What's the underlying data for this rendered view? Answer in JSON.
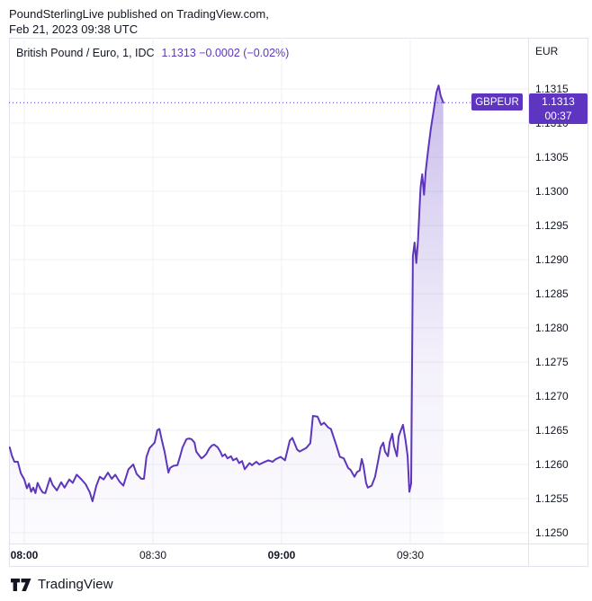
{
  "header": {
    "line1": "PoundSterlingLive published on TradingView.com,",
    "line2": "Feb 21, 2023 09:38 UTC"
  },
  "chart": {
    "title": "British Pound / Euro, 1, IDC",
    "quote_text": "1.1313  −0.0002 (−0.02%)",
    "axis_currency": "EUR",
    "symbol_badge": "GBPEUR",
    "price_badge_price": "1.1313",
    "price_badge_countdown": "00:37",
    "colors": {
      "accent": "#5d35c1",
      "line": "#5e36bb",
      "text": "#131722",
      "grid": "#eef1f6",
      "border": "#e0e3eb",
      "background": "#ffffff"
    }
  },
  "chart_data": {
    "type": "area",
    "title": "British Pound / Euro, 1, IDC",
    "symbol": "GBPEUR",
    "interval": "1 minute",
    "date": "Feb 21, 2023",
    "x_unit": "minutes since 08:00 UTC",
    "ylim": [
      1.1248,
      1.1322
    ],
    "xlim_minutes": [
      -3.6,
      101
    ],
    "grid": true,
    "last_price": 1.1313,
    "change": -0.0002,
    "change_pct": "-0.02%",
    "price_ticks": [
      "1.1315",
      "1.1310",
      "1.1305",
      "1.1300",
      "1.1295",
      "1.1290",
      "1.1285",
      "1.1280",
      "1.1275",
      "1.1270",
      "1.1265",
      "1.1260",
      "1.1255",
      "1.1250"
    ],
    "time_ticks": [
      {
        "label": "08:00",
        "t": 0,
        "bold": true
      },
      {
        "label": "08:30",
        "t": 30,
        "bold": false
      },
      {
        "label": "09:00",
        "t": 60,
        "bold": true
      },
      {
        "label": "09:30",
        "t": 90,
        "bold": false
      }
    ],
    "series": [
      {
        "name": "GBPEUR close",
        "points": [
          [
            -3.4,
            1.12625
          ],
          [
            -2.9,
            1.12613
          ],
          [
            -2.3,
            1.12604
          ],
          [
            -1.5,
            1.12604
          ],
          [
            -0.8,
            1.12587
          ],
          [
            0,
            1.12578
          ],
          [
            0.6,
            1.12565
          ],
          [
            1.1,
            1.12572
          ],
          [
            1.6,
            1.1256
          ],
          [
            2.1,
            1.12566
          ],
          [
            2.6,
            1.12558
          ],
          [
            3.1,
            1.12573
          ],
          [
            3.7,
            1.12565
          ],
          [
            4.3,
            1.12559
          ],
          [
            4.9,
            1.12558
          ],
          [
            5.5,
            1.1257
          ],
          [
            6,
            1.1258
          ],
          [
            6.6,
            1.1257
          ],
          [
            7.6,
            1.12562
          ],
          [
            8.6,
            1.12574
          ],
          [
            9.4,
            1.12566
          ],
          [
            10.5,
            1.12578
          ],
          [
            11.3,
            1.12573
          ],
          [
            12.2,
            1.12585
          ],
          [
            13.2,
            1.12579
          ],
          [
            14.3,
            1.12571
          ],
          [
            15.3,
            1.12559
          ],
          [
            15.9,
            1.12546
          ],
          [
            16.8,
            1.12569
          ],
          [
            17.6,
            1.12582
          ],
          [
            18.5,
            1.12578
          ],
          [
            19.5,
            1.12588
          ],
          [
            20.4,
            1.12579
          ],
          [
            21.2,
            1.12585
          ],
          [
            22.2,
            1.12575
          ],
          [
            23.1,
            1.12569
          ],
          [
            24.3,
            1.12593
          ],
          [
            25.4,
            1.126
          ],
          [
            26.2,
            1.12586
          ],
          [
            27.3,
            1.12579
          ],
          [
            27.9,
            1.12579
          ],
          [
            28.5,
            1.12611
          ],
          [
            29.2,
            1.12624
          ],
          [
            30.4,
            1.12632
          ],
          [
            31,
            1.1265
          ],
          [
            31.5,
            1.12652
          ],
          [
            32.1,
            1.12635
          ],
          [
            32.7,
            1.12619
          ],
          [
            33.6,
            1.12588
          ],
          [
            34,
            1.12595
          ],
          [
            34.8,
            1.12598
          ],
          [
            35.7,
            1.12599
          ],
          [
            36.3,
            1.12611
          ],
          [
            36.9,
            1.12625
          ],
          [
            37.8,
            1.12637
          ],
          [
            38.4,
            1.12638
          ],
          [
            39,
            1.12637
          ],
          [
            39.7,
            1.12632
          ],
          [
            40.1,
            1.12619
          ],
          [
            40.9,
            1.12612
          ],
          [
            41.3,
            1.12609
          ],
          [
            41.8,
            1.12611
          ],
          [
            42.4,
            1.12615
          ],
          [
            43.2,
            1.12624
          ],
          [
            43.8,
            1.12628
          ],
          [
            44.3,
            1.12629
          ],
          [
            45.1,
            1.12625
          ],
          [
            45.7,
            1.12619
          ],
          [
            46.2,
            1.12612
          ],
          [
            46.8,
            1.12615
          ],
          [
            47.4,
            1.12609
          ],
          [
            48.2,
            1.12612
          ],
          [
            48.7,
            1.12606
          ],
          [
            49.5,
            1.12609
          ],
          [
            50.1,
            1.12602
          ],
          [
            50.8,
            1.12605
          ],
          [
            51.4,
            1.12593
          ],
          [
            52.5,
            1.12602
          ],
          [
            53.1,
            1.12599
          ],
          [
            54.1,
            1.12604
          ],
          [
            54.8,
            1.126
          ],
          [
            55.8,
            1.12603
          ],
          [
            56.9,
            1.12606
          ],
          [
            57.9,
            1.12604
          ],
          [
            58.7,
            1.12608
          ],
          [
            59.8,
            1.12611
          ],
          [
            60.8,
            1.12606
          ],
          [
            61.9,
            1.12635
          ],
          [
            62.5,
            1.12639
          ],
          [
            63.6,
            1.12622
          ],
          [
            64.2,
            1.12619
          ],
          [
            65.7,
            1.12624
          ],
          [
            66.7,
            1.12631
          ],
          [
            67.3,
            1.12671
          ],
          [
            68.4,
            1.1267
          ],
          [
            69.2,
            1.12658
          ],
          [
            69.9,
            1.12661
          ],
          [
            70.9,
            1.12654
          ],
          [
            71.5,
            1.12652
          ],
          [
            72.6,
            1.12631
          ],
          [
            73.6,
            1.12611
          ],
          [
            74.5,
            1.12609
          ],
          [
            75.5,
            1.12595
          ],
          [
            76.1,
            1.12592
          ],
          [
            77,
            1.12582
          ],
          [
            77.6,
            1.12589
          ],
          [
            78.2,
            1.12591
          ],
          [
            78.7,
            1.12608
          ],
          [
            79.1,
            1.12598
          ],
          [
            79.7,
            1.12573
          ],
          [
            80.1,
            1.12566
          ],
          [
            81,
            1.12569
          ],
          [
            81.8,
            1.12582
          ],
          [
            82.4,
            1.12602
          ],
          [
            83.1,
            1.12625
          ],
          [
            83.7,
            1.12632
          ],
          [
            84.1,
            1.12619
          ],
          [
            84.8,
            1.12612
          ],
          [
            85.2,
            1.12632
          ],
          [
            85.8,
            1.12645
          ],
          [
            86.2,
            1.12627
          ],
          [
            86.9,
            1.12612
          ],
          [
            87.3,
            1.12641
          ],
          [
            87.7,
            1.12648
          ],
          [
            88.3,
            1.12658
          ],
          [
            88.9,
            1.12635
          ],
          [
            89.4,
            1.12612
          ],
          [
            89.8,
            1.1256
          ],
          [
            90.2,
            1.12572
          ],
          [
            90.6,
            1.12905
          ],
          [
            91,
            1.12925
          ],
          [
            91.4,
            1.12895
          ],
          [
            91.8,
            1.12928
          ],
          [
            92.4,
            1.13005
          ],
          [
            92.8,
            1.13025
          ],
          [
            93.2,
            1.12995
          ],
          [
            93.6,
            1.1303
          ],
          [
            94.2,
            1.13062
          ],
          [
            94.8,
            1.13092
          ],
          [
            95.5,
            1.1312
          ],
          [
            96.1,
            1.13145
          ],
          [
            96.6,
            1.13155
          ],
          [
            97.1,
            1.1314
          ],
          [
            97.7,
            1.1313
          ]
        ]
      }
    ]
  },
  "footer": {
    "logo_text": "TradingView"
  }
}
